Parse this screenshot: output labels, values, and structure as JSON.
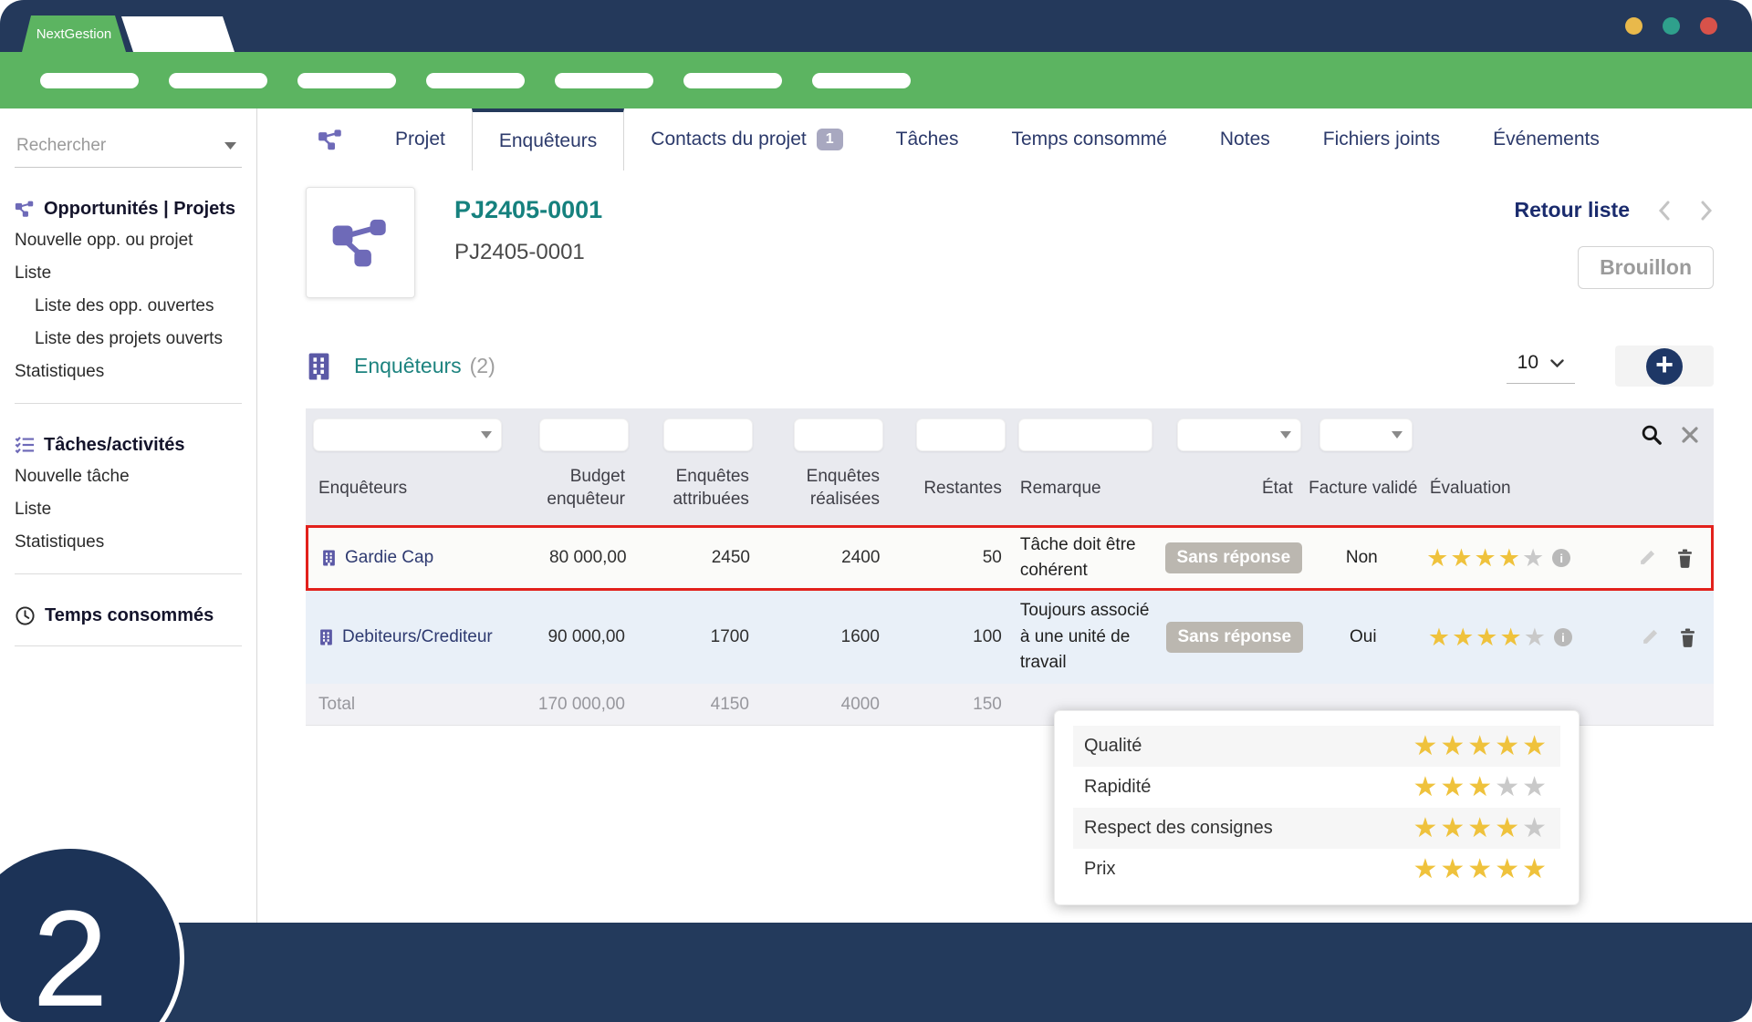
{
  "brand": {
    "name": "NextGestion"
  },
  "window_dots": {
    "yellow": "#E9B94B",
    "teal": "#2FA08C",
    "red": "#D8524A"
  },
  "colors": {
    "navy": "#24395B",
    "green": "#5CB461",
    "teal": "#16817E",
    "purple": "#6E6AB8",
    "star_gold": "#EFC23C",
    "star_gray": "#C9C9C9",
    "highlight_red": "#E2211C",
    "badge_gray": "#BBB7B0"
  },
  "icons": {
    "caret_down": "▾",
    "star": "★",
    "close": "✕",
    "plus": "+",
    "info": "i"
  },
  "sidebar": {
    "search_placeholder": "Rechercher",
    "sections": [
      {
        "icon": "project-diagram",
        "title": "Opportunités | Projets",
        "items": [
          "Nouvelle opp. ou projet",
          "Liste",
          "Liste des opp. ouvertes",
          "Liste des projets ouverts",
          "Statistiques"
        ]
      },
      {
        "icon": "task-list",
        "title": "Tâches/activités",
        "items": [
          "Nouvelle tâche",
          "Liste",
          "Statistiques"
        ]
      },
      {
        "icon": "clock",
        "title": "Temps consommés",
        "items": []
      }
    ]
  },
  "tabs": {
    "items": [
      "Projet",
      "Enquêteurs",
      "Contacts du projet",
      "Tâches",
      "Temps consommé",
      "Notes",
      "Fichiers joints",
      "Événements"
    ],
    "active": "Enquêteurs",
    "contacts_badge": "1"
  },
  "project": {
    "code": "PJ2405-0001",
    "name": "PJ2405-0001",
    "back_link": "Retour liste",
    "status": "Brouillon"
  },
  "list_header": {
    "title": "Enquêteurs",
    "count": "(2)",
    "page_size": "10"
  },
  "table": {
    "columns": [
      "Enquêteurs",
      "Budget enquêteur",
      "Enquêtes attribuées",
      "Enquêtes réalisées",
      "Restantes",
      "Remarque",
      "État",
      "Facture validé",
      "Évaluation"
    ],
    "rows": [
      {
        "name": "Gardie Cap",
        "budget": "80 000,00",
        "attribuees": "2450",
        "realisees": "2400",
        "restantes": "50",
        "remarque": "Tâche doit être cohérent",
        "etat": "Sans réponse",
        "facture": "Non",
        "evaluation": {
          "stars": 4,
          "max": 5
        }
      },
      {
        "name": "Debiteurs/Crediteur",
        "budget": "90 000,00",
        "attribuees": "1700",
        "realisees": "1600",
        "restantes": "100",
        "remarque": "Toujours associé à une unité de travail",
        "etat": "Sans réponse",
        "facture": "Oui",
        "evaluation": {
          "stars": 4,
          "max": 5
        }
      }
    ],
    "total": {
      "label": "Total",
      "budget": "170 000,00",
      "attribuees": "4150",
      "realisees": "4000",
      "restantes": "150"
    }
  },
  "rating_tooltip": {
    "rows": [
      {
        "label": "Qualité",
        "stars": 5,
        "max": 5
      },
      {
        "label": "Rapidité",
        "stars": 3,
        "max": 5
      },
      {
        "label": "Respect des consignes",
        "stars": 4,
        "max": 5
      },
      {
        "label": "Prix",
        "stars": 5,
        "max": 5
      }
    ]
  },
  "overlay": {
    "step": "2"
  }
}
